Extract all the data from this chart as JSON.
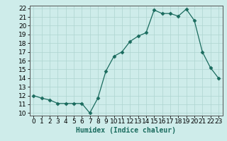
{
  "x": [
    0,
    1,
    2,
    3,
    4,
    5,
    6,
    7,
    8,
    9,
    10,
    11,
    12,
    13,
    14,
    15,
    16,
    17,
    18,
    19,
    20,
    21,
    22,
    23
  ],
  "y": [
    12,
    11.7,
    11.5,
    11.1,
    11.1,
    11.1,
    11.1,
    10.0,
    11.7,
    14.8,
    16.5,
    17.0,
    18.2,
    18.8,
    19.2,
    21.8,
    21.4,
    21.4,
    21.1,
    21.9,
    20.6,
    17.0,
    15.2,
    14.0
  ],
  "xlabel": "Humidex (Indice chaleur)",
  "ylim": [
    9.7,
    22.3
  ],
  "xlim": [
    -0.5,
    23.5
  ],
  "yticks": [
    10,
    11,
    12,
    13,
    14,
    15,
    16,
    17,
    18,
    19,
    20,
    21,
    22
  ],
  "xticks": [
    0,
    1,
    2,
    3,
    4,
    5,
    6,
    7,
    8,
    9,
    10,
    11,
    12,
    13,
    14,
    15,
    16,
    17,
    18,
    19,
    20,
    21,
    22,
    23
  ],
  "line_color": "#1a6b5e",
  "marker": "D",
  "marker_size": 2.5,
  "bg_color": "#ceecea",
  "grid_color": "#aed4d0",
  "xlabel_fontsize": 7,
  "tick_fontsize": 6.5
}
